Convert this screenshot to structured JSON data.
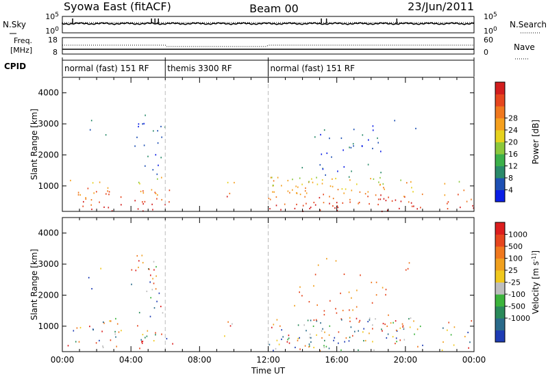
{
  "header": {
    "station": "Syowa East (fitACF)",
    "beam": "Beam 00",
    "date": "23/Jun/2011"
  },
  "nsky_panel": {
    "left_label": "N.Sky",
    "right_label": "N.Search",
    "left_ticks": [
      "10^5",
      "10^0"
    ],
    "right_ticks": [
      "10^5",
      "10^0"
    ]
  },
  "freq_panel": {
    "left_label_line1": "Freq.",
    "left_label_line2": "[MHz]",
    "right_label": "Nave",
    "left_ticks": [
      "18",
      "8"
    ],
    "right_ticks": [
      "60",
      "0"
    ]
  },
  "cpid_panel": {
    "label": "CPID",
    "segments": [
      {
        "start_hour": 0,
        "end_hour": 6,
        "text": "normal (fast) 151 RF"
      },
      {
        "start_hour": 6,
        "end_hour": 12,
        "text": "themis 3300 RF"
      },
      {
        "start_hour": 12,
        "end_hour": 24,
        "text": "normal (fast) 151 RF"
      }
    ]
  },
  "x_axis": {
    "label": "Time UT",
    "ticks": [
      "00:00",
      "04:00",
      "08:00",
      "12:00",
      "16:00",
      "20:00",
      "00:00"
    ]
  },
  "chart_data": [
    {
      "type": "heatmap",
      "name": "power",
      "ylabel": "Slant Range [km]",
      "yticks": [
        "1000",
        "2000",
        "3000",
        "4000"
      ],
      "ylim": [
        180,
        4500
      ],
      "xlim_hours": [
        0,
        24
      ],
      "colorbar_label": "Power [dB]",
      "colorbar_ticks": [
        "4",
        "8",
        "12",
        "16",
        "20",
        "24",
        "28"
      ],
      "colorbar_colors": [
        "#0a1ee6",
        "#1e50b4",
        "#2a8a6a",
        "#3cb04a",
        "#8cc83c",
        "#e6d21e",
        "#f5a01e",
        "#f0781e",
        "#e6461e",
        "#d21e1e"
      ]
    },
    {
      "type": "heatmap",
      "name": "velocity",
      "ylabel": "Slant Range [km]",
      "yticks": [
        "1000",
        "2000",
        "3000",
        "4000"
      ],
      "ylim": [
        180,
        4500
      ],
      "xlim_hours": [
        0,
        24
      ],
      "colorbar_label": "Velocity [m s^-1]",
      "colorbar_ticks": [
        "1000",
        "500",
        "100",
        "25",
        "-25",
        "-100",
        "-500",
        "-1000"
      ],
      "colorbar_colors": [
        "#1e3cb4",
        "#2a6a8a",
        "#2a8a5a",
        "#3cb43c",
        "#bebebe",
        "#f0c81e",
        "#f0a01e",
        "#f0781e",
        "#e6461e",
        "#dc1e1e"
      ]
    }
  ]
}
